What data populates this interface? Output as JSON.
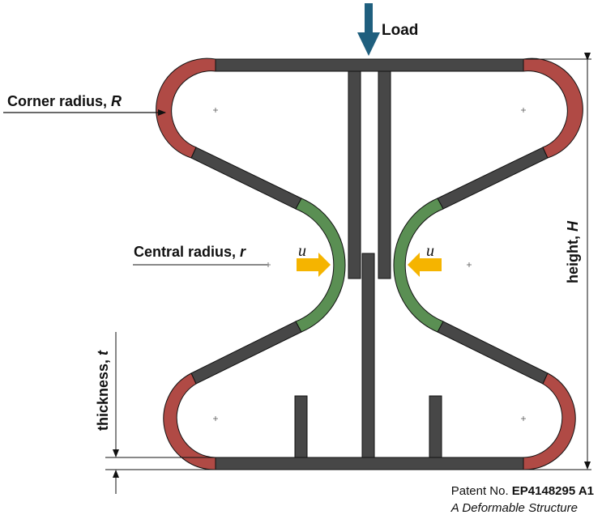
{
  "labels": {
    "load": "Load",
    "corner_radius": "Corner radius, ",
    "corner_radius_symbol": "R",
    "central_radius": "Central radius, ",
    "central_radius_symbol": "r",
    "height": "height, ",
    "height_symbol": "H",
    "thickness": "thickness, ",
    "thickness_symbol": "t",
    "displacement_left": "u",
    "displacement_right": "u"
  },
  "patent": {
    "prefix": "Patent No. ",
    "number": "EP4148295 A1",
    "title": "A Deformable Structure"
  },
  "colors": {
    "beam": "#474747",
    "corner_arc": "#b04a45",
    "central_arc": "#5a8f53",
    "load_arrow": "#1f5f7e",
    "displacement_arrow": "#f5b400",
    "outline": "#111111"
  }
}
